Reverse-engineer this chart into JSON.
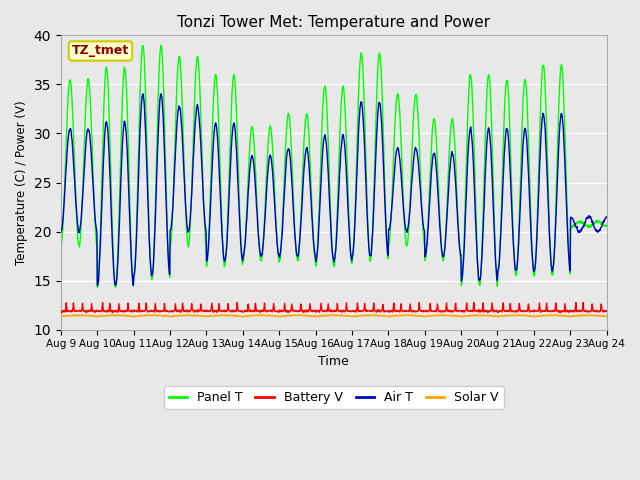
{
  "title": "Tonzi Tower Met: Temperature and Power",
  "xlabel": "Time",
  "ylabel": "Temperature (C) / Power (V)",
  "ylim": [
    10,
    40
  ],
  "yticks": [
    10,
    15,
    20,
    25,
    30,
    35,
    40
  ],
  "x_tick_labels": [
    "Aug 9",
    "Aug 10",
    "Aug 11",
    "Aug 12",
    "Aug 13",
    "Aug 14",
    "Aug 15",
    "Aug 16",
    "Aug 17",
    "Aug 18",
    "Aug 19",
    "Aug 20",
    "Aug 21",
    "Aug 22",
    "Aug 23",
    "Aug 24"
  ],
  "annotation_text": "TZ_tmet",
  "annotation_color": "#8B0000",
  "annotation_bg": "#FFFFCC",
  "annotation_edge": "#CCCC00",
  "bg_color": "#E8E8E8",
  "panel_t_color": "#00FF00",
  "battery_v_color": "#FF0000",
  "air_t_color": "#0000CC",
  "solar_v_color": "#FFA500",
  "legend_labels": [
    "Panel T",
    "Battery V",
    "Air T",
    "Solar V"
  ],
  "n_days": 15,
  "pts_per_day": 96,
  "panel_peaks": [
    35.5,
    36.7,
    39.0,
    37.8,
    36.0,
    30.7,
    32.0,
    34.8,
    38.2,
    34.0,
    31.5,
    36.0,
    35.5,
    37.0,
    21.0
  ],
  "panel_troughs": [
    18.5,
    14.3,
    15.2,
    18.5,
    16.5,
    17.0,
    17.0,
    16.5,
    17.0,
    18.5,
    17.0,
    14.5,
    15.5,
    15.5,
    20.5
  ],
  "air_peak_offsets": [
    -5.0,
    -5.5,
    -5.0,
    -5.0,
    -5.0,
    -3.0,
    -3.5,
    -5.0,
    -5.0,
    -5.5,
    -3.5,
    -5.5,
    -5.0,
    -5.0,
    -1.0
  ],
  "air_trough_offsets": [
    1.5,
    0.2,
    0.3,
    1.5,
    0.5,
    0.5,
    0.5,
    0.5,
    0.5,
    1.5,
    0.5,
    0.5,
    0.5,
    0.5,
    1.0
  ]
}
